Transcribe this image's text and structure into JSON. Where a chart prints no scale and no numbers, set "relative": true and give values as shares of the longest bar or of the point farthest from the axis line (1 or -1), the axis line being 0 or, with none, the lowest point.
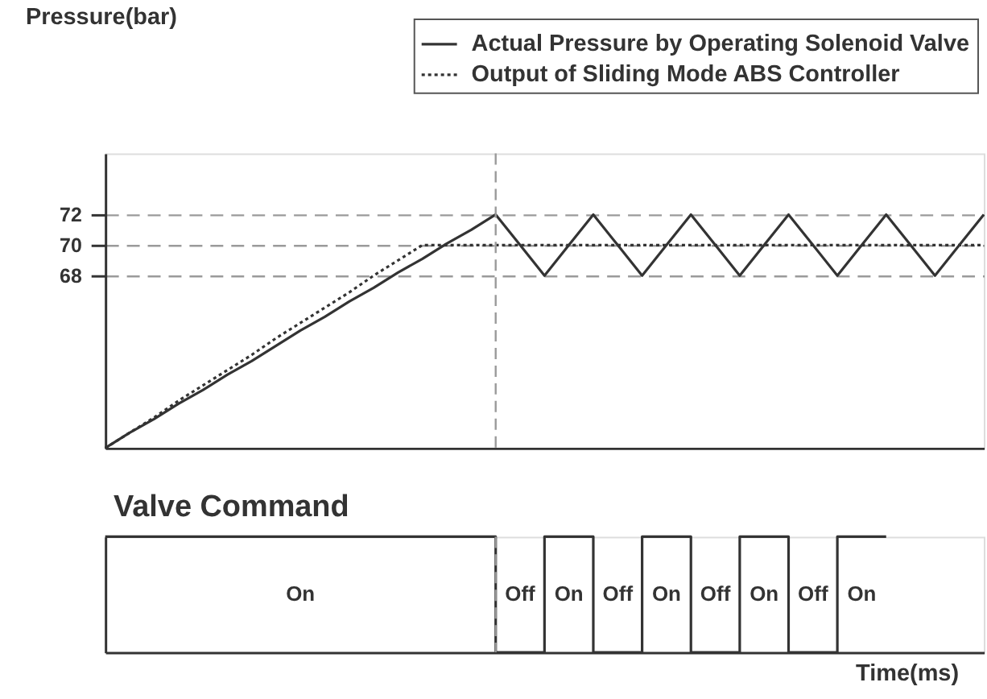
{
  "chart_data": [
    {
      "type": "line",
      "ylabel": "Pressure(bar)",
      "categories": [
        null,
        null,
        null,
        null,
        null,
        null,
        null,
        null,
        null,
        null,
        null,
        null,
        null,
        null,
        null,
        null,
        null,
        null,
        null,
        null,
        null,
        null,
        null,
        null,
        null,
        null,
        null,
        null,
        null,
        null,
        null,
        null,
        null,
        null,
        null,
        null,
        null
      ],
      "series": [
        {
          "name": "Actual Pressure by Operating Solenoid Valve",
          "color": "#333333",
          "line_style": "solid",
          "values": [
            56.7,
            57.7,
            58.6,
            59.6,
            60.5,
            61.5,
            62.4,
            63.4,
            64.4,
            65.3,
            66.3,
            67.2,
            68.2,
            69.1,
            70.1,
            71.0,
            72,
            70,
            68,
            70,
            72,
            70,
            68,
            70,
            72,
            70,
            68,
            70,
            72,
            70,
            68,
            70,
            72,
            70,
            68,
            70,
            72
          ]
        },
        {
          "name": "Output of Sliding Mode ABS Controller",
          "color": "#333333",
          "line_style": "dotted",
          "values": [
            56.7,
            57.7,
            58.7,
            59.8,
            60.8,
            61.8,
            62.8,
            63.9,
            64.9,
            65.9,
            66.9,
            68.0,
            69.0,
            70,
            70,
            70,
            70,
            70,
            70,
            70,
            70,
            70,
            70,
            70,
            70,
            70,
            70,
            70,
            70,
            70,
            70,
            70,
            70,
            70,
            70,
            70,
            70
          ]
        }
      ],
      "ylim": [
        56.7,
        76
      ],
      "yticks": [
        68,
        70,
        72
      ],
      "grid": "y",
      "legend": "top right",
      "tick_labels": "y"
    },
    {
      "type": "step",
      "title": "Valve Command",
      "xlabel": "Time(ms)",
      "categories": [
        null,
        null,
        null,
        null,
        null,
        null,
        null,
        null,
        null,
        null,
        null,
        null,
        null,
        null,
        null,
        null,
        null,
        null,
        null,
        null,
        null,
        null,
        null,
        null,
        null,
        null,
        null,
        null,
        null,
        null,
        null,
        null,
        null,
        null,
        null,
        null,
        null
      ],
      "relative": true,
      "color": "#333333",
      "values": [
        1,
        1,
        1,
        1,
        1,
        1,
        1,
        1,
        1,
        1,
        1,
        1,
        1,
        1,
        1,
        1,
        0,
        0,
        1,
        1,
        0,
        0,
        1,
        1,
        0,
        0,
        1,
        1,
        0,
        0,
        1,
        1,
        1,
        null,
        null,
        null,
        null
      ],
      "annotations": [
        "On",
        "Off",
        "On",
        "Off",
        "On",
        "Off",
        "On",
        "Off",
        "On"
      ],
      "tick_labels": false
    }
  ]
}
